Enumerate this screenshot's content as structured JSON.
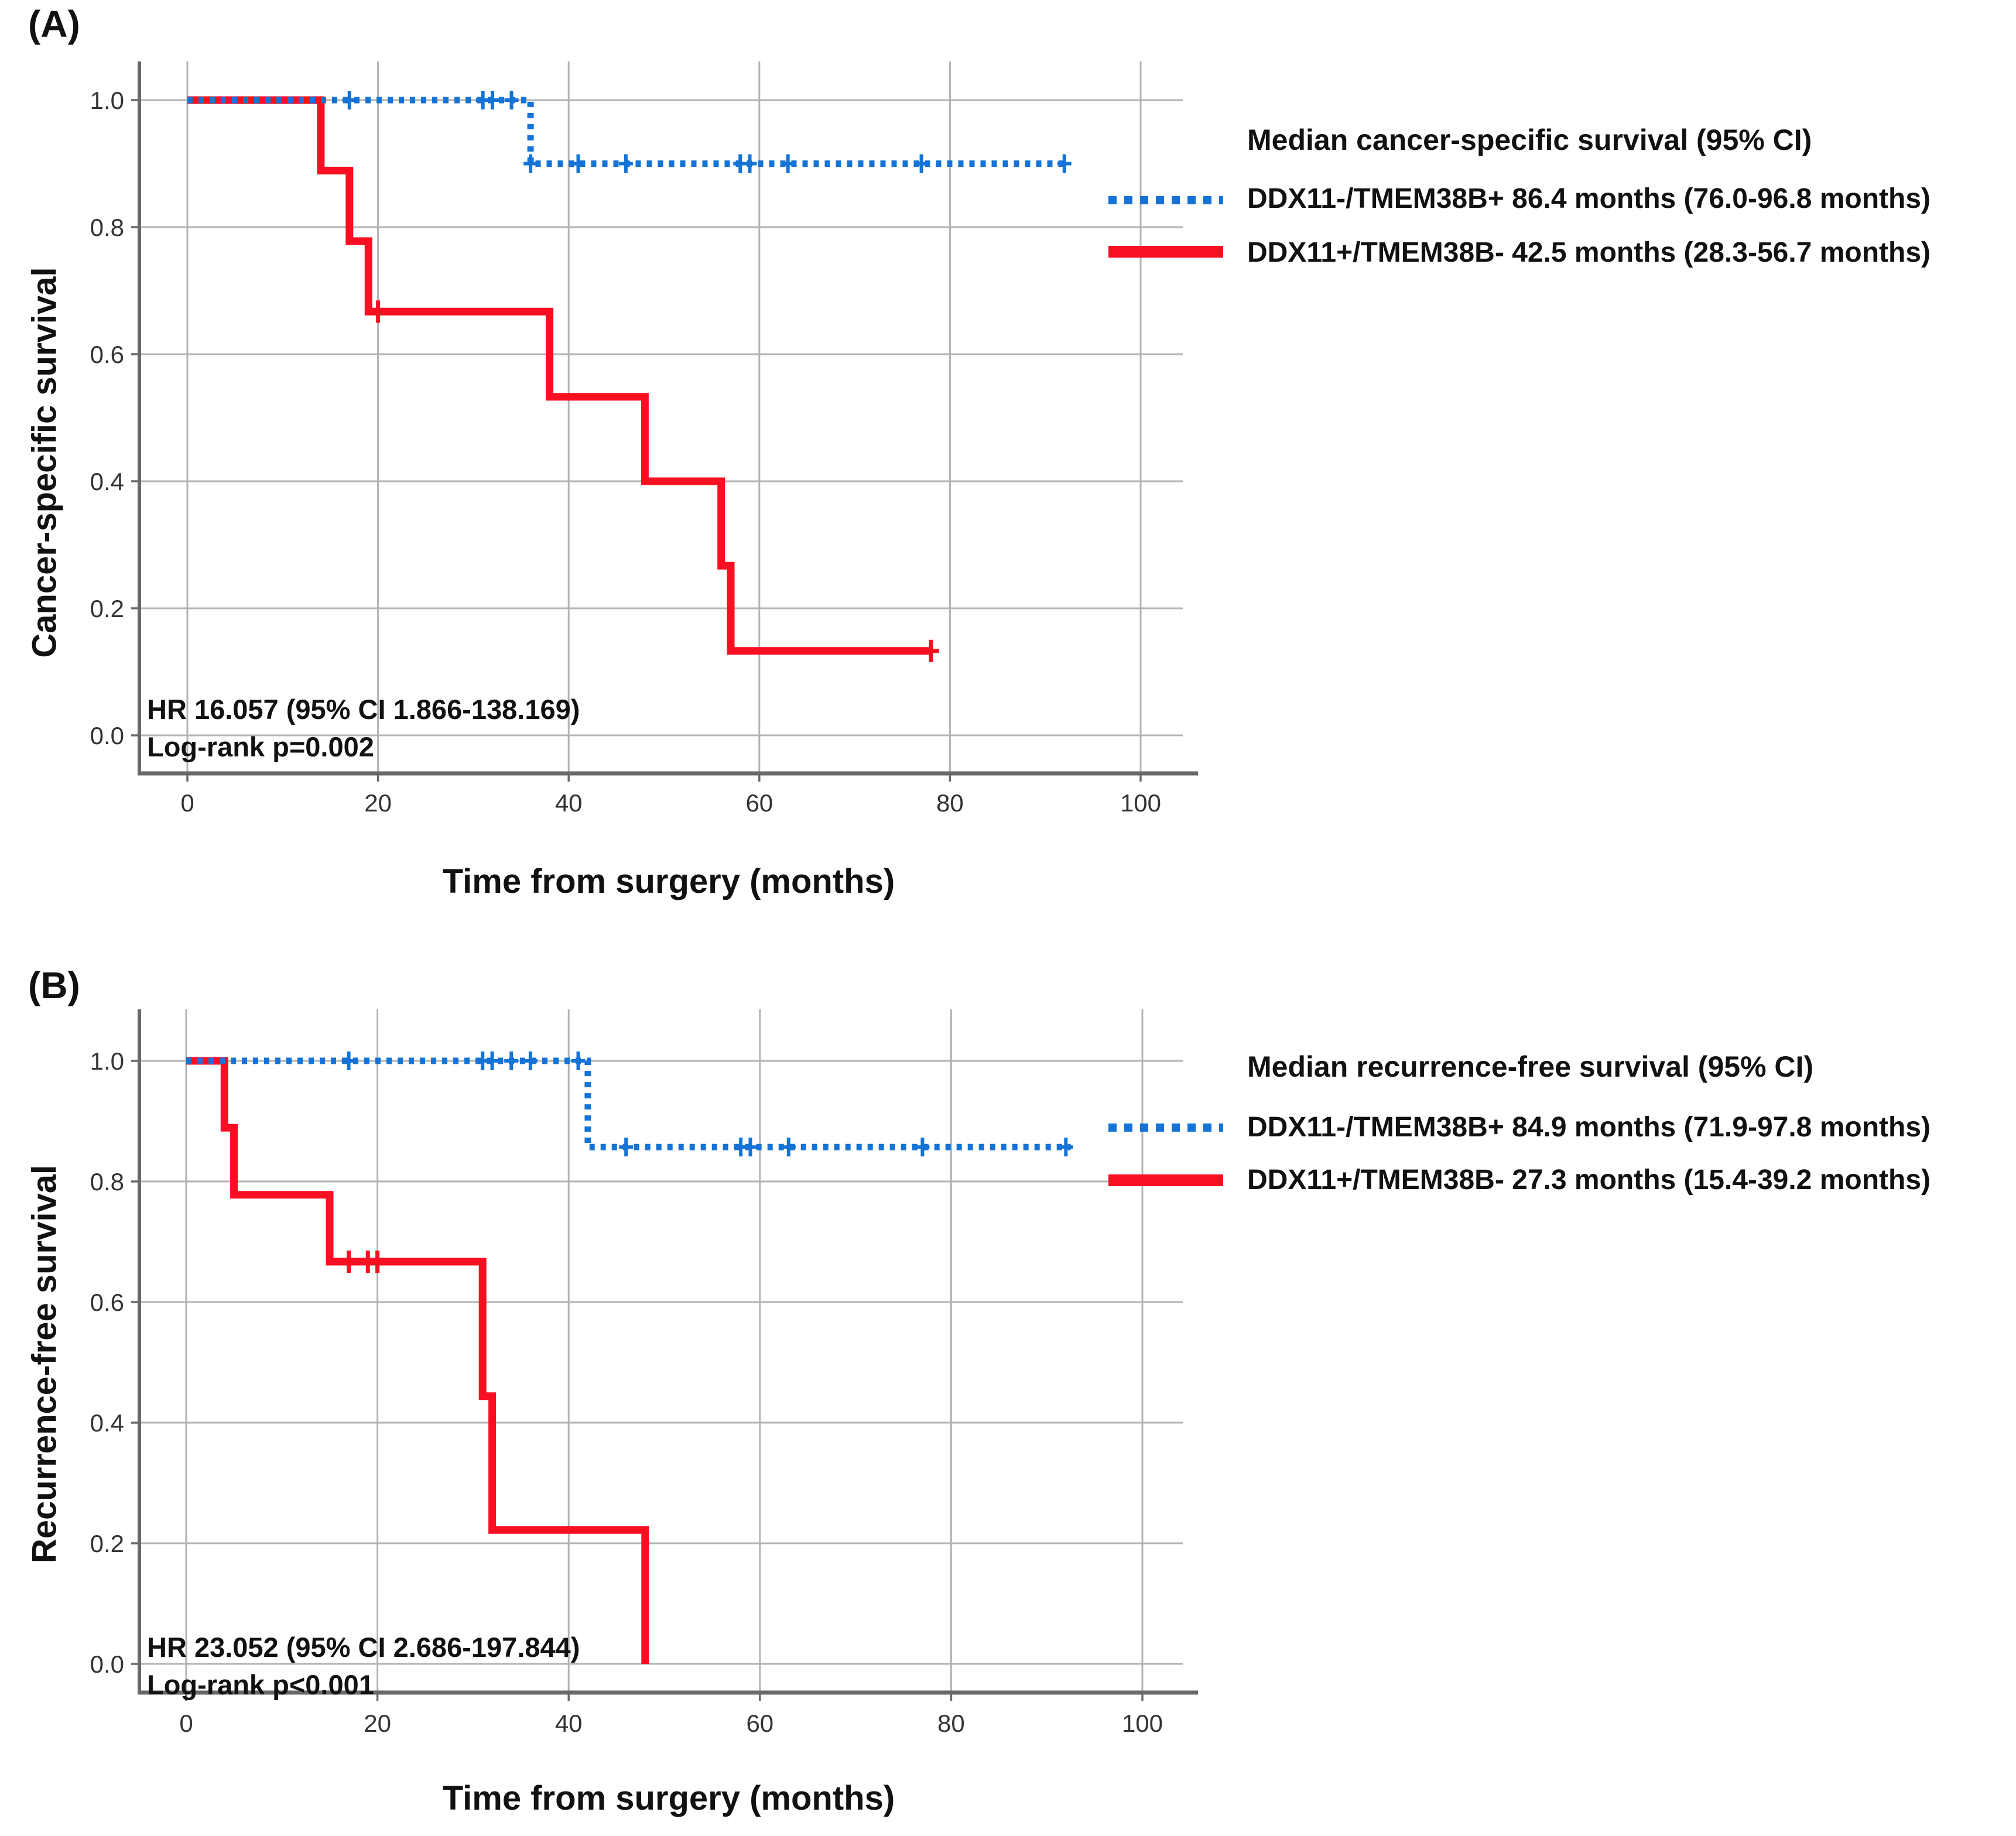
{
  "figure_type": "kaplan-meier-survival-curves",
  "colors": {
    "group_positive": "#1573D6",
    "group_negative": "#F90F22",
    "gridline": "#B3B3B3",
    "axis": "#696969"
  },
  "chart_data": [
    {
      "id": "A",
      "panel_label": "(A)",
      "type": "line",
      "subtype": "kaplan_meier_step",
      "xlabel": "Time from surgery (months)",
      "ylabel": "Cancer-specific survival",
      "xlim": [
        -5,
        106
      ],
      "ylim": [
        -0.06,
        1.06
      ],
      "x_ticks": [
        0,
        20,
        40,
        60,
        80,
        100
      ],
      "y_ticks": [
        0.0,
        0.2,
        0.4,
        0.6,
        0.8,
        1.0
      ],
      "grid": true,
      "annotations": [
        "HR 16.057 (95% CI 1.866-138.169)",
        "Log-rank p=0.002"
      ],
      "legend": {
        "position": "right-outside",
        "title": "Median cancer-specific survival (95% CI)",
        "entries": [
          {
            "label": "DDX11-/TMEM38B+ 86.4 months (76.0-96.8 months)",
            "color": "#1573D6",
            "line_style": "dotted"
          },
          {
            "label": "DDX11+/TMEM38B- 42.5 months (28.3-56.7 months)",
            "color": "#F90F22",
            "line_style": "solid"
          }
        ]
      },
      "series": [
        {
          "name": "DDX11-/TMEM38B+",
          "color": "#1573D6",
          "line_style": "dotted",
          "steps": [
            [
              0,
              1.0
            ],
            [
              36,
              1.0
            ],
            [
              36,
              0.9
            ],
            [
              92.5,
              0.9
            ]
          ],
          "censor_marks": [
            [
              17,
              1.0
            ],
            [
              31,
              1.0
            ],
            [
              32,
              1.0
            ],
            [
              34,
              1.0
            ],
            [
              36,
              0.9
            ],
            [
              41,
              0.9
            ],
            [
              46,
              0.9
            ],
            [
              58,
              0.9
            ],
            [
              59,
              0.9
            ],
            [
              63,
              0.9
            ],
            [
              77,
              0.9
            ],
            [
              92,
              0.9
            ]
          ]
        },
        {
          "name": "DDX11+/TMEM38B-",
          "color": "#F90F22",
          "line_style": "solid",
          "steps": [
            [
              0,
              1.0
            ],
            [
              14,
              1.0
            ],
            [
              14,
              0.889
            ],
            [
              17,
              0.889
            ],
            [
              17,
              0.778
            ],
            [
              19,
              0.778
            ],
            [
              19,
              0.667
            ],
            [
              38,
              0.667
            ],
            [
              38,
              0.533
            ],
            [
              48,
              0.533
            ],
            [
              48,
              0.4
            ],
            [
              56,
              0.4
            ],
            [
              56,
              0.267
            ],
            [
              57,
              0.267
            ],
            [
              57,
              0.133
            ],
            [
              78,
              0.133
            ]
          ],
          "censor_marks": [
            [
              20,
              0.667
            ],
            [
              78,
              0.133
            ]
          ]
        }
      ]
    },
    {
      "id": "B",
      "panel_label": "(B)",
      "type": "line",
      "subtype": "kaplan_meier_step",
      "xlabel": "Time from surgery (months)",
      "ylabel": "Recurrence-free survival",
      "xlim": [
        -5,
        106
      ],
      "ylim": [
        -0.06,
        1.06
      ],
      "x_ticks": [
        0,
        20,
        40,
        60,
        80,
        100
      ],
      "y_ticks": [
        0.0,
        0.2,
        0.4,
        0.6,
        0.8,
        1.0
      ],
      "grid": true,
      "annotations": [
        "HR 23.052 (95% CI 2.686-197.844)",
        "Log-rank p<0.001"
      ],
      "legend": {
        "position": "right-outside",
        "title": "Median recurrence-free survival (95% CI)",
        "entries": [
          {
            "label": "DDX11-/TMEM38B+ 84.9 months (71.9-97.8 months)",
            "color": "#1573D6",
            "line_style": "dotted"
          },
          {
            "label": "DDX11+/TMEM38B- 27.3 months (15.4-39.2 months)",
            "color": "#F90F22",
            "line_style": "solid"
          }
        ]
      },
      "series": [
        {
          "name": "DDX11-/TMEM38B+",
          "color": "#1573D6",
          "line_style": "dotted",
          "steps": [
            [
              0,
              1.0
            ],
            [
              42,
              1.0
            ],
            [
              42,
              0.857
            ],
            [
              92.5,
              0.857
            ]
          ],
          "censor_marks": [
            [
              17,
              1.0
            ],
            [
              31,
              1.0
            ],
            [
              32,
              1.0
            ],
            [
              34,
              1.0
            ],
            [
              36,
              1.0
            ],
            [
              41,
              1.0
            ],
            [
              46,
              0.857
            ],
            [
              58,
              0.857
            ],
            [
              59,
              0.857
            ],
            [
              63,
              0.857
            ],
            [
              77,
              0.857
            ],
            [
              92,
              0.857
            ]
          ]
        },
        {
          "name": "DDX11+/TMEM38B-",
          "color": "#F90F22",
          "line_style": "solid",
          "steps": [
            [
              0,
              1.0
            ],
            [
              4,
              1.0
            ],
            [
              4,
              0.889
            ],
            [
              5,
              0.889
            ],
            [
              5,
              0.778
            ],
            [
              15,
              0.778
            ],
            [
              15,
              0.667
            ],
            [
              31,
              0.667
            ],
            [
              31,
              0.444
            ],
            [
              32,
              0.444
            ],
            [
              32,
              0.222
            ],
            [
              48,
              0.222
            ],
            [
              48,
              0.0
            ]
          ],
          "censor_marks": [
            [
              17,
              0.667
            ],
            [
              19,
              0.667
            ],
            [
              20,
              0.667
            ]
          ]
        }
      ]
    }
  ]
}
